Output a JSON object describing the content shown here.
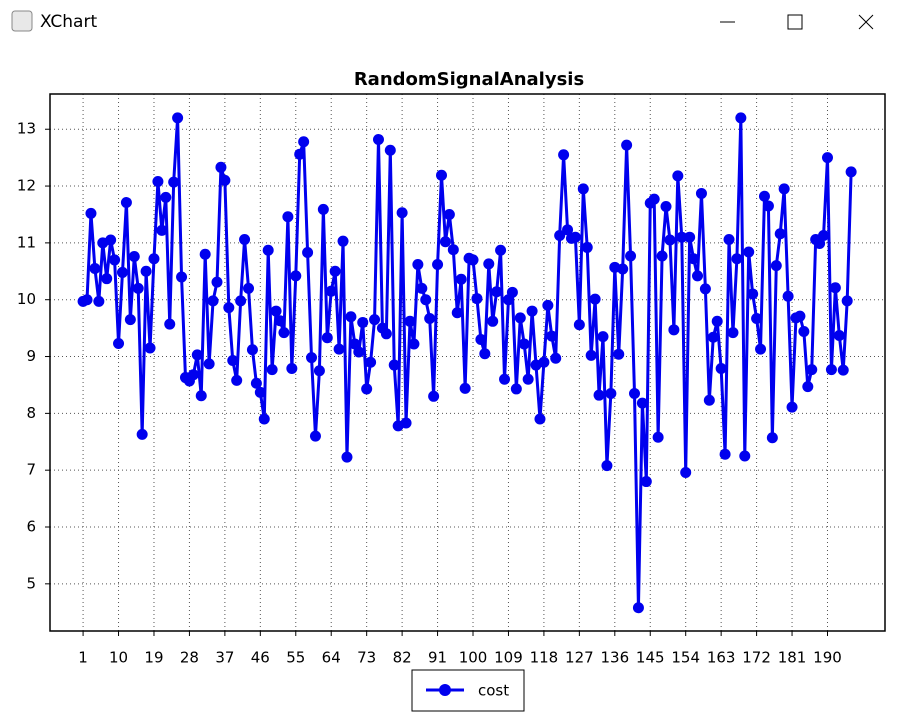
{
  "window": {
    "title": "XChart"
  },
  "chart_data": {
    "type": "line",
    "title": "RandomSignalAnalysis",
    "x": [
      1,
      2,
      3,
      4,
      5,
      6,
      7,
      8,
      9,
      10,
      11,
      12,
      13,
      14,
      15,
      16,
      17,
      18,
      19,
      20,
      21,
      22,
      23,
      24,
      25,
      26,
      27,
      28,
      29,
      30,
      31,
      32,
      33,
      34,
      35,
      36,
      37,
      38,
      39,
      40,
      41,
      42,
      43,
      44,
      45,
      46,
      47,
      48,
      49,
      50,
      51,
      52,
      53,
      54,
      55,
      56,
      57,
      58,
      59,
      60,
      61,
      62,
      63,
      64,
      65,
      66,
      67,
      68,
      69,
      70,
      71,
      72,
      73,
      74,
      75,
      76,
      77,
      78,
      79,
      80,
      81,
      82,
      83,
      84,
      85,
      86,
      87,
      88,
      89,
      90,
      91,
      92,
      93,
      94,
      95,
      96,
      97,
      98,
      99,
      100,
      101,
      102,
      103,
      104,
      105,
      106,
      107,
      108,
      109,
      110,
      111,
      112,
      113,
      114,
      115,
      116,
      117,
      118,
      119,
      120,
      121,
      122,
      123,
      124,
      125,
      126,
      127,
      128,
      129,
      130,
      131,
      132,
      133,
      134,
      135,
      136,
      137,
      138,
      139,
      140,
      141,
      142,
      143,
      144,
      145,
      146,
      147,
      148,
      149,
      150,
      151,
      152,
      153,
      154,
      155,
      156,
      157,
      158,
      159,
      160,
      161,
      162,
      163,
      164,
      165,
      166,
      167,
      168,
      169,
      170,
      171,
      172,
      173,
      174,
      175,
      176,
      177,
      178,
      179,
      180,
      181,
      182,
      183,
      184,
      185,
      186,
      187,
      188,
      189,
      190,
      191,
      192,
      193,
      194,
      195,
      196
    ],
    "series": [
      {
        "name": "cost",
        "color": "#0000ee",
        "values": [
          9.97,
          10.0,
          11.52,
          10.55,
          9.97,
          11.0,
          10.37,
          11.05,
          10.7,
          9.23,
          10.48,
          11.71,
          9.65,
          10.76,
          10.2,
          7.63,
          10.5,
          9.15,
          10.72,
          12.08,
          11.22,
          11.8,
          9.57,
          12.07,
          13.2,
          10.4,
          8.63,
          8.57,
          8.68,
          9.03,
          8.31,
          10.8,
          8.87,
          9.98,
          10.31,
          12.33,
          12.1,
          9.86,
          8.93,
          8.58,
          9.98,
          11.06,
          10.2,
          9.12,
          8.53,
          8.37,
          7.9,
          10.87,
          8.77,
          9.8,
          9.63,
          9.42,
          11.46,
          8.79,
          10.42,
          12.56,
          12.78,
          10.83,
          8.98,
          7.6,
          8.75,
          11.59,
          9.33,
          10.15,
          10.5,
          9.13,
          11.03,
          7.23,
          9.7,
          9.22,
          9.08,
          9.6,
          8.43,
          8.9,
          9.65,
          12.82,
          9.5,
          9.4,
          12.63,
          8.85,
          7.78,
          11.53,
          7.83,
          9.62,
          9.22,
          10.62,
          10.2,
          10.0,
          9.67,
          8.3,
          10.62,
          12.19,
          11.02,
          11.5,
          10.88,
          9.77,
          10.36,
          8.44,
          10.73,
          10.7,
          10.02,
          9.3,
          9.05,
          10.63,
          9.62,
          10.14,
          10.87,
          8.6,
          10.0,
          10.13,
          8.43,
          9.68,
          9.22,
          8.6,
          9.8,
          8.85,
          7.9,
          8.9,
          9.9,
          9.36,
          8.97,
          11.13,
          12.55,
          11.23,
          11.08,
          11.1,
          9.56,
          11.95,
          10.92,
          9.02,
          10.01,
          8.32,
          9.35,
          7.08,
          8.35,
          10.57,
          9.04,
          10.54,
          12.72,
          10.77,
          8.35,
          4.58,
          8.18,
          6.8,
          11.7,
          11.77,
          7.58,
          10.77,
          11.64,
          11.05,
          9.47,
          12.18,
          11.1,
          6.96,
          11.1,
          10.72,
          10.42,
          11.87,
          10.19,
          8.23,
          9.34,
          9.62,
          8.79,
          7.28,
          11.06,
          9.42,
          10.72,
          13.2,
          7.25,
          10.84,
          10.1,
          9.67,
          9.13,
          11.82,
          11.65,
          7.57,
          10.6,
          11.16,
          11.95,
          10.06,
          8.11,
          9.68,
          9.71,
          9.44,
          8.47,
          8.77,
          11.06,
          10.99,
          11.13,
          12.5,
          8.77,
          10.21,
          9.37,
          8.76,
          9.98,
          12.25
        ]
      }
    ],
    "xlim": [
      -7.4,
      204.6
    ],
    "xticks": [
      1,
      10,
      19,
      28,
      37,
      46,
      55,
      64,
      73,
      82,
      91,
      100,
      109,
      118,
      127,
      136,
      145,
      154,
      163,
      172,
      181,
      190
    ],
    "ylim": [
      4.17,
      13.62
    ],
    "yticks": [
      5,
      6,
      7,
      8,
      9,
      10,
      11,
      12,
      13
    ],
    "grid": true,
    "legend": "bottom"
  }
}
